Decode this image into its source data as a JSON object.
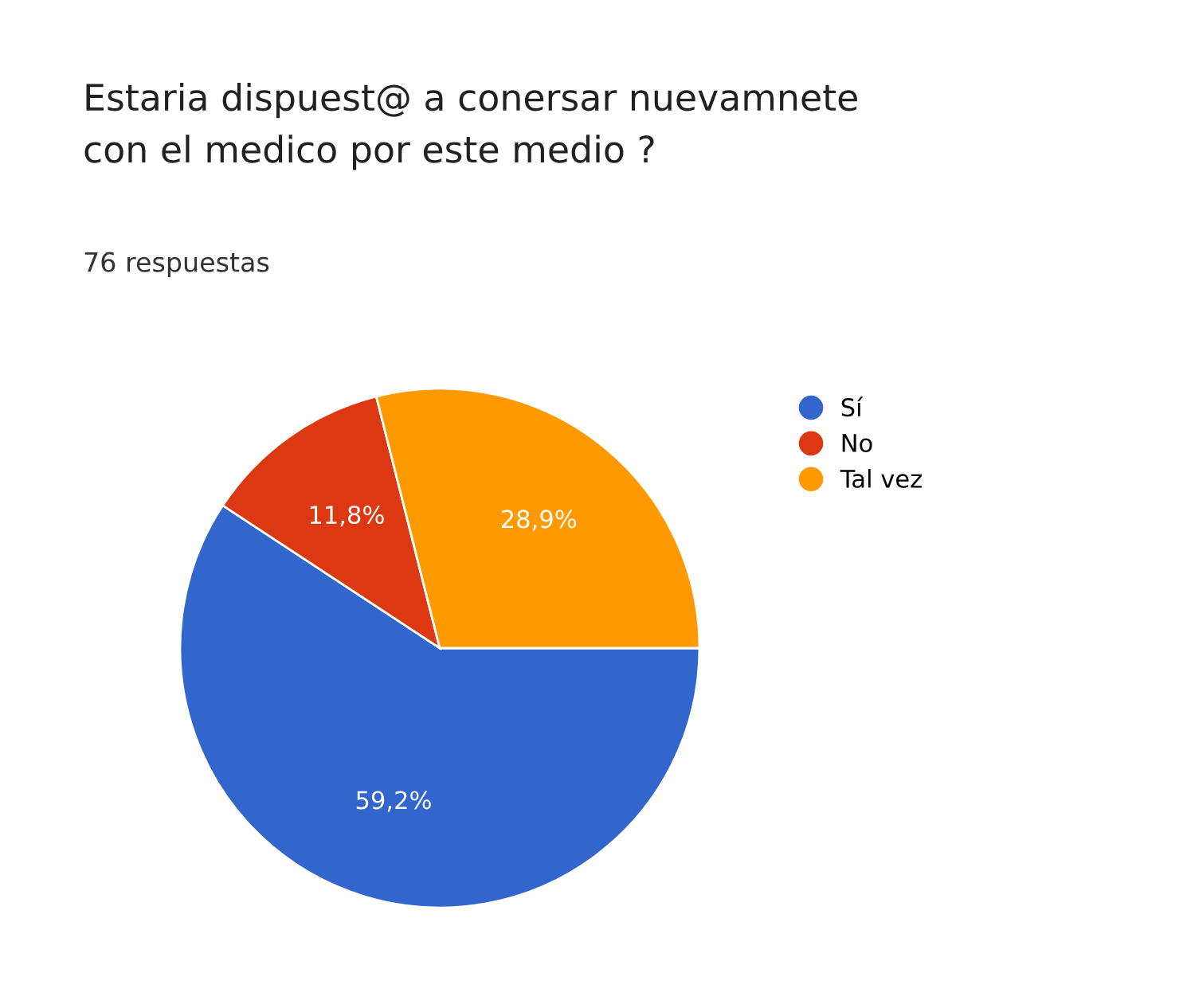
{
  "chart_data": {
    "type": "pie",
    "title": "Estaria dispuest@ a conersar nuevamnete\ncon el medico por este medio ?",
    "subtitle": "76 respuestas",
    "categories": [
      "Sí",
      "No",
      "Tal vez"
    ],
    "values": [
      59.2,
      11.8,
      28.9
    ],
    "value_labels": [
      "59,2%",
      "11,8%",
      "28,9%"
    ],
    "colors": [
      "#3366cc",
      "#dc3912",
      "#ff9900"
    ],
    "legend": "right"
  }
}
